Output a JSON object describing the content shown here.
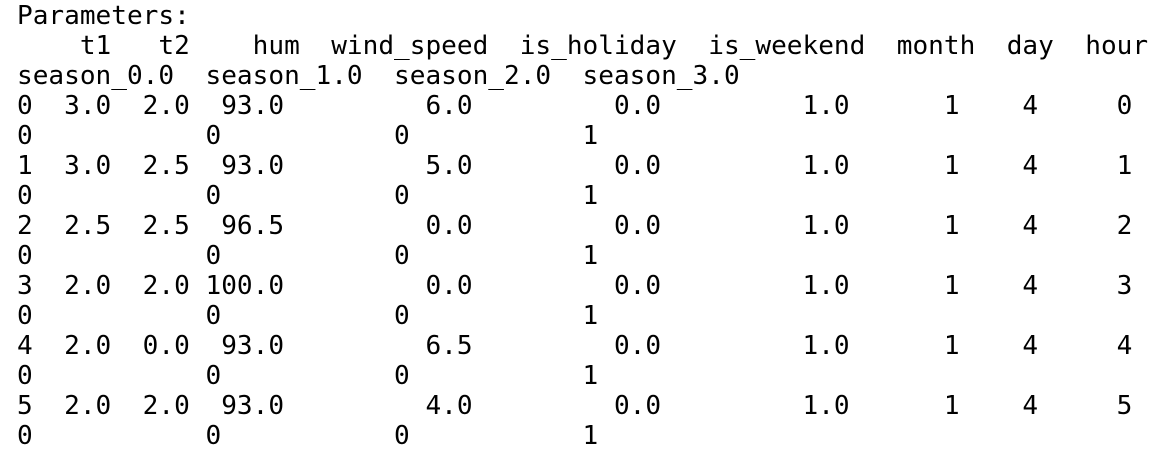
{
  "console": {
    "lines": [
      "Parameters:",
      "    t1   t2    hum  wind_speed  is_holiday  is_weekend  month  day  hour",
      "season_0.0  season_1.0  season_2.0  season_3.0",
      "0  3.0  2.0  93.0         6.0         0.0         1.0      1    4     0",
      "0           0           0           1",
      "1  3.0  2.5  93.0         5.0         0.0         1.0      1    4     1",
      "0           0           0           1",
      "2  2.5  2.5  96.5         0.0         0.0         1.0      1    4     2",
      "0           0           0           1",
      "3  2.0  2.0 100.0         0.0         0.0         1.0      1    4     3",
      "0           0           0           1",
      "4  2.0  0.0  93.0         6.5         0.0         1.0      1    4     4",
      "0           0           0           1",
      "5  2.0  2.0  93.0         4.0         0.0         1.0      1    4     5",
      "0           0           0           1"
    ]
  }
}
